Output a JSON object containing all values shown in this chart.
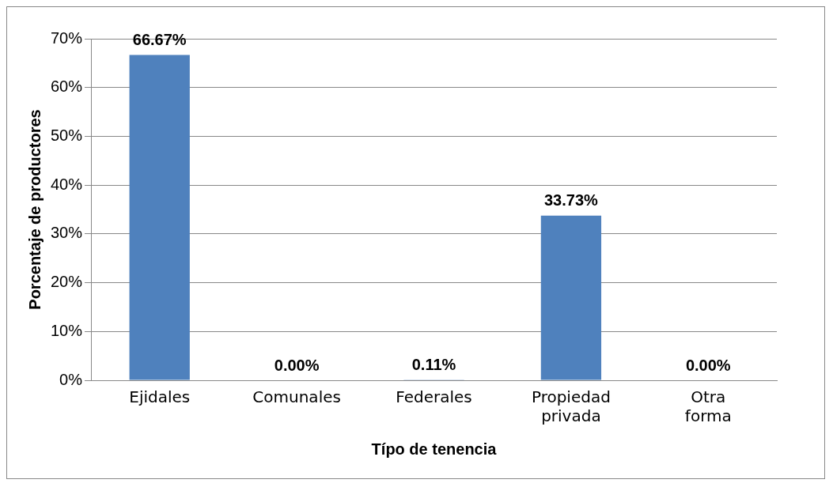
{
  "chart_data": {
    "type": "bar",
    "xlabel": "Típo de tenencia",
    "ylabel": "Porcentaje de productores",
    "categories": [
      "Ejidales",
      "Comunales",
      "Federales",
      "Propiedad privada",
      "Otra forma"
    ],
    "values": [
      66.67,
      0.0,
      0.11,
      33.73,
      0.0
    ],
    "value_labels": [
      "66.67%",
      "0.00%",
      "0.11%",
      "33.73%",
      "0.00%"
    ],
    "color": "#4f81bd",
    "ylim": [
      0,
      70
    ],
    "yticks": [
      {
        "value": 0,
        "label": "0%"
      },
      {
        "value": 10,
        "label": "10%"
      },
      {
        "value": 20,
        "label": "20%"
      },
      {
        "value": 30,
        "label": "30%"
      },
      {
        "value": 40,
        "label": "40%"
      },
      {
        "value": 50,
        "label": "50%"
      },
      {
        "value": 60,
        "label": "60%"
      },
      {
        "value": 70,
        "label": "70%"
      }
    ],
    "grid": "y"
  }
}
